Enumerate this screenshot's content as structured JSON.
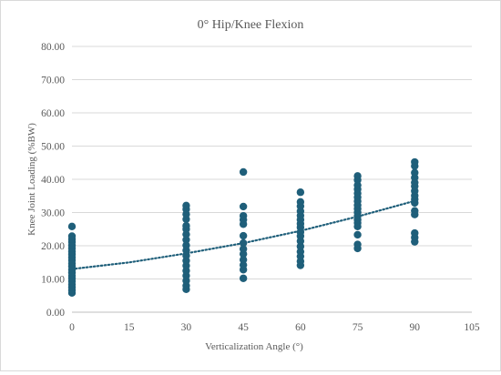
{
  "chart_data": {
    "type": "scatter",
    "title": "0° Hip/Knee Flexion",
    "xlabel": "Verticalization Angle (°)",
    "ylabel": "Knee Joint Loading (%BW)",
    "xlim": [
      0,
      105
    ],
    "ylim": [
      0,
      80
    ],
    "xticks": [
      "0",
      "15",
      "30",
      "45",
      "60",
      "75",
      "90",
      "105"
    ],
    "yticks": [
      "0.00",
      "10.00",
      "20.00",
      "30.00",
      "40.00",
      "50.00",
      "60.00",
      "70.00",
      "80.00"
    ],
    "grid": true,
    "marker_color": "#1f5f7a",
    "series": [
      {
        "points": [
          {
            "x": 0,
            "y": 5.8
          },
          {
            "x": 0,
            "y": 6.6
          },
          {
            "x": 0,
            "y": 7.5
          },
          {
            "x": 0,
            "y": 8.4
          },
          {
            "x": 0,
            "y": 9.3
          },
          {
            "x": 0,
            "y": 10.2
          },
          {
            "x": 0,
            "y": 11.0
          },
          {
            "x": 0,
            "y": 11.9
          },
          {
            "x": 0,
            "y": 12.8
          },
          {
            "x": 0,
            "y": 13.8
          },
          {
            "x": 0,
            "y": 14.7
          },
          {
            "x": 0,
            "y": 15.6
          },
          {
            "x": 0,
            "y": 16.5
          },
          {
            "x": 0,
            "y": 17.4
          },
          {
            "x": 0,
            "y": 18.3
          },
          {
            "x": 0,
            "y": 19.2
          },
          {
            "x": 0,
            "y": 20.1
          },
          {
            "x": 0,
            "y": 21.1
          },
          {
            "x": 0,
            "y": 22.0
          },
          {
            "x": 0,
            "y": 22.9
          },
          {
            "x": 0,
            "y": 25.8
          },
          {
            "x": 30,
            "y": 6.9
          },
          {
            "x": 30,
            "y": 8.0
          },
          {
            "x": 30,
            "y": 9.5
          },
          {
            "x": 30,
            "y": 11.0
          },
          {
            "x": 30,
            "y": 12.5
          },
          {
            "x": 30,
            "y": 14.0
          },
          {
            "x": 30,
            "y": 15.5
          },
          {
            "x": 30,
            "y": 17.0
          },
          {
            "x": 30,
            "y": 18.6
          },
          {
            "x": 30,
            "y": 20.1
          },
          {
            "x": 30,
            "y": 21.8
          },
          {
            "x": 30,
            "y": 23.4
          },
          {
            "x": 30,
            "y": 25.0
          },
          {
            "x": 30,
            "y": 26.0
          },
          {
            "x": 30,
            "y": 28.0
          },
          {
            "x": 30,
            "y": 29.5
          },
          {
            "x": 30,
            "y": 31.0
          },
          {
            "x": 30,
            "y": 32.1
          },
          {
            "x": 45,
            "y": 10.2
          },
          {
            "x": 45,
            "y": 12.8
          },
          {
            "x": 45,
            "y": 14.2
          },
          {
            "x": 45,
            "y": 15.8
          },
          {
            "x": 45,
            "y": 17.5
          },
          {
            "x": 45,
            "y": 19.0
          },
          {
            "x": 45,
            "y": 20.8
          },
          {
            "x": 45,
            "y": 23.0
          },
          {
            "x": 45,
            "y": 26.5
          },
          {
            "x": 45,
            "y": 27.8
          },
          {
            "x": 45,
            "y": 29.0
          },
          {
            "x": 45,
            "y": 31.8
          },
          {
            "x": 45,
            "y": 42.2
          },
          {
            "x": 60,
            "y": 14.1
          },
          {
            "x": 60,
            "y": 15.3
          },
          {
            "x": 60,
            "y": 16.8
          },
          {
            "x": 60,
            "y": 18.2
          },
          {
            "x": 60,
            "y": 19.8
          },
          {
            "x": 60,
            "y": 21.4
          },
          {
            "x": 60,
            "y": 22.9
          },
          {
            "x": 60,
            "y": 24.1
          },
          {
            "x": 60,
            "y": 25.5
          },
          {
            "x": 60,
            "y": 26.6
          },
          {
            "x": 60,
            "y": 27.8
          },
          {
            "x": 60,
            "y": 29.1
          },
          {
            "x": 60,
            "y": 30.4
          },
          {
            "x": 60,
            "y": 31.9
          },
          {
            "x": 60,
            "y": 33.2
          },
          {
            "x": 60,
            "y": 36.1
          },
          {
            "x": 75,
            "y": 19.2
          },
          {
            "x": 75,
            "y": 20.4
          },
          {
            "x": 75,
            "y": 23.3
          },
          {
            "x": 75,
            "y": 25.8
          },
          {
            "x": 75,
            "y": 26.9
          },
          {
            "x": 75,
            "y": 27.8
          },
          {
            "x": 75,
            "y": 28.9
          },
          {
            "x": 75,
            "y": 30.0
          },
          {
            "x": 75,
            "y": 31.1
          },
          {
            "x": 75,
            "y": 32.2
          },
          {
            "x": 75,
            "y": 33.4
          },
          {
            "x": 75,
            "y": 34.6
          },
          {
            "x": 75,
            "y": 35.8
          },
          {
            "x": 75,
            "y": 37.0
          },
          {
            "x": 75,
            "y": 38.2
          },
          {
            "x": 75,
            "y": 39.8
          },
          {
            "x": 75,
            "y": 41.0
          },
          {
            "x": 90,
            "y": 21.2
          },
          {
            "x": 90,
            "y": 22.5
          },
          {
            "x": 90,
            "y": 23.8
          },
          {
            "x": 90,
            "y": 29.4
          },
          {
            "x": 90,
            "y": 30.5
          },
          {
            "x": 90,
            "y": 32.9
          },
          {
            "x": 90,
            "y": 34.0
          },
          {
            "x": 90,
            "y": 35.1
          },
          {
            "x": 90,
            "y": 36.5
          },
          {
            "x": 90,
            "y": 37.9
          },
          {
            "x": 90,
            "y": 39.0
          },
          {
            "x": 90,
            "y": 40.5
          },
          {
            "x": 90,
            "y": 42.0
          },
          {
            "x": 90,
            "y": 44.0
          },
          {
            "x": 90,
            "y": 45.2
          }
        ]
      }
    ],
    "trendline": {
      "type": "exponential",
      "style": "dotted",
      "x": [
        0,
        15,
        30,
        45,
        60,
        75,
        90
      ],
      "y": [
        13.0,
        15.0,
        17.7,
        20.8,
        24.5,
        28.8,
        33.5
      ]
    }
  }
}
